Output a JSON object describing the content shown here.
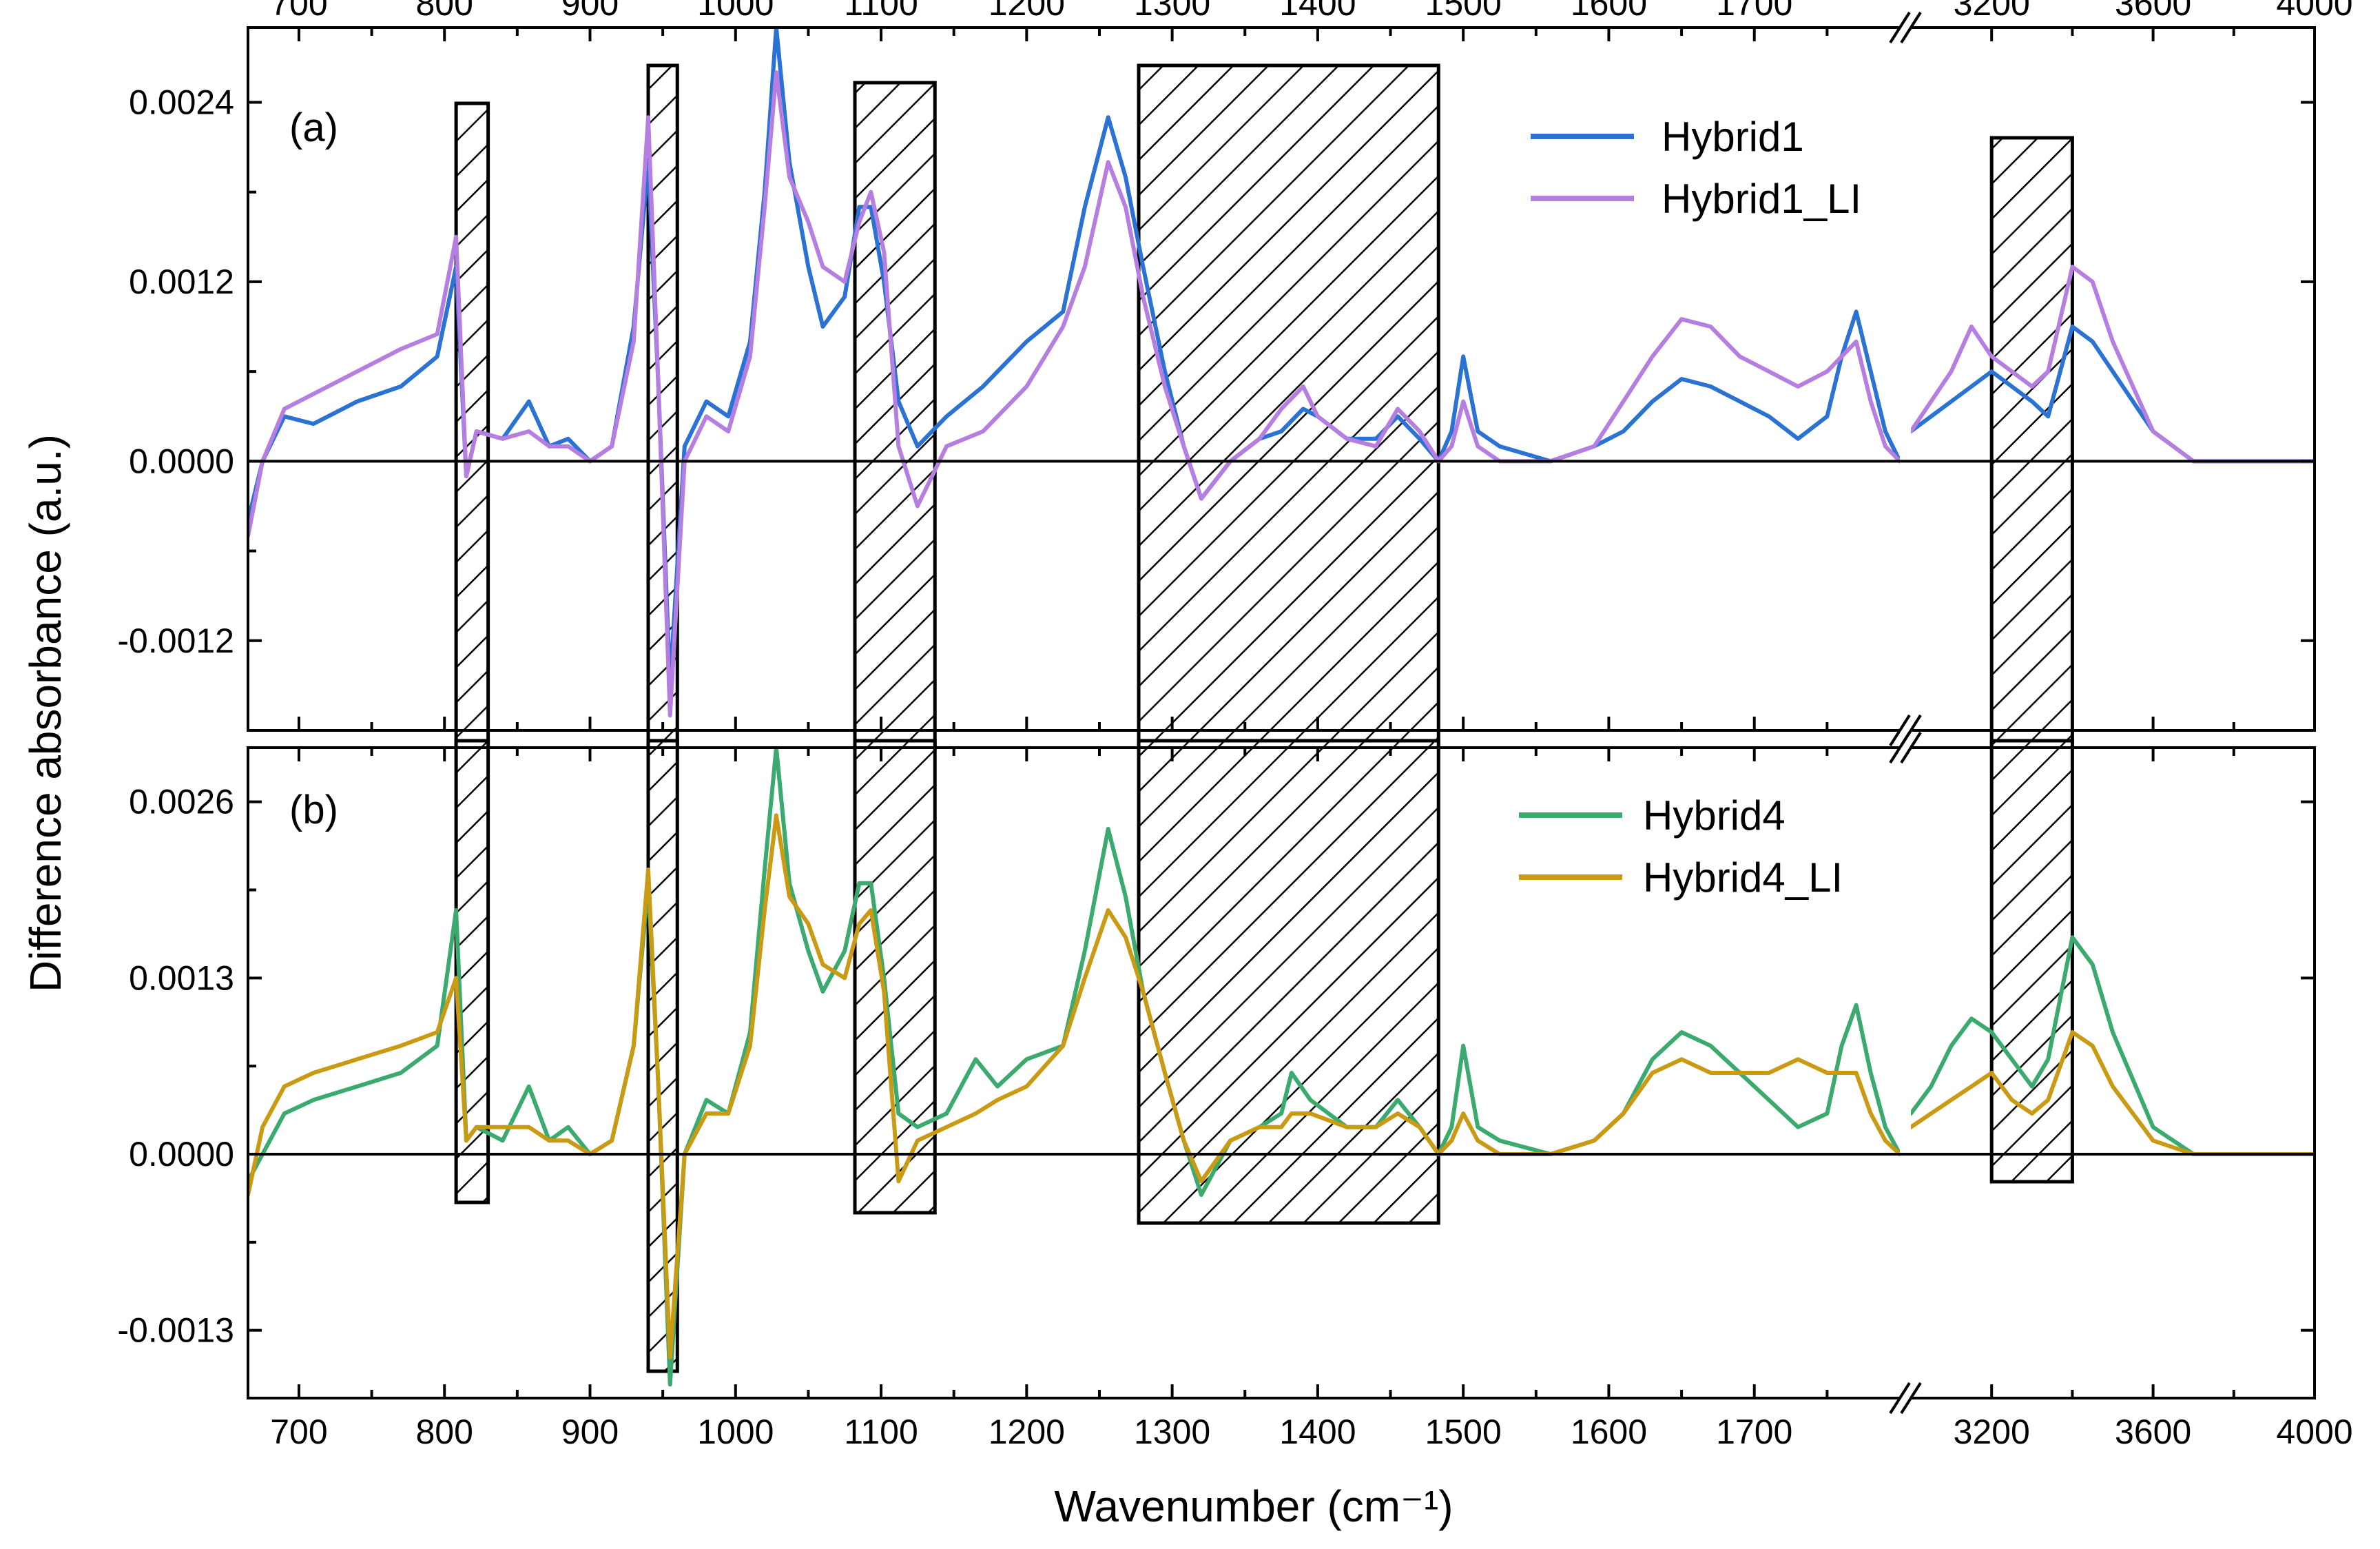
{
  "chart_data": [
    {
      "panel": "(a)",
      "type": "line",
      "ylabel": "Difference absorbance (a.u.)",
      "xlabel": "Wavenumber (cm⁻¹)",
      "xlim_segment1": [
        665,
        1800
      ],
      "xlim_segment2": [
        3000,
        4000
      ],
      "ylim": [
        -0.0018,
        0.0029
      ],
      "yticks": [
        -0.0012,
        0.0,
        0.0012,
        0.0024
      ],
      "ytick_labels": [
        "-0.0012",
        "0.0000",
        "0.0012",
        "0.0024"
      ],
      "xticks_segment1": [
        700,
        800,
        900,
        1000,
        1100,
        1200,
        1300,
        1400,
        1500,
        1600,
        1700
      ],
      "xticks_segment2": [
        3200,
        3600,
        4000
      ],
      "xtick_labels_segment1": [
        "700",
        "800",
        "900",
        "1000",
        "1100",
        "1200",
        "1300",
        "1400",
        "1500",
        "1600",
        "1700"
      ],
      "xtick_labels_segment2": [
        "3200",
        "3600",
        "4000"
      ],
      "legend_position": "top-right",
      "hatched_regions": [
        [
          808,
          830
        ],
        [
          940,
          960
        ],
        [
          1082,
          1137
        ],
        [
          1277,
          1483
        ],
        [
          3200,
          3400
        ]
      ],
      "series": [
        {
          "name": "Hybrid1",
          "color": "#2a72d4",
          "x": [
            665,
            675,
            690,
            710,
            740,
            770,
            795,
            808,
            815,
            822,
            840,
            858,
            872,
            885,
            900,
            915,
            930,
            940,
            947,
            955,
            965,
            980,
            995,
            1010,
            1020,
            1028,
            1037,
            1050,
            1060,
            1075,
            1085,
            1093,
            1102,
            1112,
            1125,
            1145,
            1170,
            1200,
            1225,
            1240,
            1256,
            1268,
            1280,
            1295,
            1308,
            1320,
            1340,
            1360,
            1375,
            1390,
            1400,
            1420,
            1440,
            1455,
            1470,
            1483,
            1492,
            1500,
            1510,
            1525,
            1560,
            1590,
            1610,
            1630,
            1650,
            1670,
            1690,
            1710,
            1730,
            1750,
            1760,
            1770,
            1780,
            1790,
            1800,
            3000,
            3050,
            3100,
            3150,
            3200,
            3250,
            3300,
            3340,
            3400,
            3450,
            3500,
            3600,
            3700,
            3800,
            3900,
            4000
          ],
          "y": [
            -0.0004,
            0.0,
            0.0003,
            0.00025,
            0.0004,
            0.0005,
            0.0007,
            0.0013,
            -0.0001,
            0.0002,
            0.00015,
            0.0004,
            0.0001,
            0.00015,
            0.0,
            0.0001,
            0.0009,
            0.002,
            0.0005,
            -0.0015,
            0.0001,
            0.0004,
            0.0003,
            0.0008,
            0.0018,
            0.0029,
            0.002,
            0.0013,
            0.0009,
            0.0011,
            0.0017,
            0.0017,
            0.0012,
            0.0004,
            0.0001,
            0.0003,
            0.0005,
            0.0008,
            0.001,
            0.0017,
            0.0023,
            0.0019,
            0.0013,
            0.0006,
            0.0001,
            -0.00025,
            0.0,
            0.00015,
            0.0002,
            0.00035,
            0.0003,
            0.00015,
            0.00015,
            0.0003,
            0.00015,
            0.0,
            0.0002,
            0.0007,
            0.0002,
            0.0001,
            0.0,
            0.0001,
            0.0002,
            0.0004,
            0.00055,
            0.0005,
            0.0004,
            0.0003,
            0.00015,
            0.0003,
            0.0007,
            0.001,
            0.0006,
            0.0002,
            0.0,
            0.0002,
            0.0003,
            0.0004,
            0.0005,
            0.0006,
            0.0005,
            0.0004,
            0.0003,
            0.0009,
            0.0008,
            0.0006,
            0.0002,
            0.0,
            0.0,
            0.0,
            0.0
          ]
        },
        {
          "name": "Hybrid1_LI",
          "color": "#b57ee0",
          "x": [
            665,
            675,
            690,
            710,
            740,
            770,
            795,
            808,
            815,
            822,
            840,
            858,
            872,
            885,
            900,
            915,
            930,
            940,
            947,
            955,
            965,
            980,
            995,
            1010,
            1020,
            1028,
            1037,
            1050,
            1060,
            1075,
            1085,
            1093,
            1102,
            1112,
            1125,
            1145,
            1170,
            1200,
            1225,
            1240,
            1256,
            1268,
            1280,
            1295,
            1308,
            1320,
            1340,
            1360,
            1375,
            1390,
            1400,
            1420,
            1440,
            1455,
            1470,
            1483,
            1492,
            1500,
            1510,
            1525,
            1560,
            1590,
            1610,
            1630,
            1650,
            1670,
            1690,
            1710,
            1730,
            1750,
            1760,
            1770,
            1780,
            1790,
            1800,
            3000,
            3050,
            3100,
            3150,
            3200,
            3250,
            3300,
            3340,
            3400,
            3450,
            3500,
            3600,
            3700,
            3800,
            3900,
            4000
          ],
          "y": [
            -0.0005,
            0.0,
            0.00035,
            0.00045,
            0.0006,
            0.00075,
            0.00085,
            0.0015,
            -0.0001,
            0.0002,
            0.00015,
            0.0002,
            0.0001,
            0.0001,
            0.0,
            0.0001,
            0.0008,
            0.0023,
            0.0005,
            -0.0017,
            0.0,
            0.0003,
            0.0002,
            0.0007,
            0.0017,
            0.0026,
            0.0019,
            0.0016,
            0.0013,
            0.0012,
            0.0016,
            0.0018,
            0.0014,
            0.0001,
            -0.0003,
            0.0001,
            0.0002,
            0.0005,
            0.0009,
            0.0013,
            0.002,
            0.0017,
            0.0011,
            0.0005,
            0.0001,
            -0.00025,
            0.0,
            0.00015,
            0.00035,
            0.0005,
            0.0003,
            0.00015,
            0.0001,
            0.00035,
            0.0002,
            0.0,
            0.0001,
            0.0004,
            0.0001,
            0.0,
            0.0,
            0.0001,
            0.0004,
            0.0007,
            0.00095,
            0.0009,
            0.0007,
            0.0006,
            0.0005,
            0.0006,
            0.0007,
            0.0008,
            0.0004,
            0.0001,
            0.0,
            0.0002,
            0.0004,
            0.0006,
            0.0009,
            0.0007,
            0.0006,
            0.0005,
            0.0006,
            0.0013,
            0.0012,
            0.0008,
            0.0002,
            0.0,
            0.0,
            0.0,
            0.0
          ]
        }
      ]
    },
    {
      "panel": "(b)",
      "type": "line",
      "ylabel": "Difference absorbance (a.u.)",
      "xlabel": "Wavenumber (cm⁻¹)",
      "xlim_segment1": [
        665,
        1800
      ],
      "xlim_segment2": [
        3000,
        4000
      ],
      "ylim": [
        -0.0018,
        0.003
      ],
      "yticks": [
        -0.0013,
        0.0,
        0.0013,
        0.0026
      ],
      "ytick_labels": [
        "-0.0013",
        "0.0000",
        "0.0013",
        "0.0026"
      ],
      "xticks_segment1": [
        700,
        800,
        900,
        1000,
        1100,
        1200,
        1300,
        1400,
        1500,
        1600,
        1700
      ],
      "xticks_segment2": [
        3200,
        3600,
        4000
      ],
      "xtick_labels_segment1": [
        "700",
        "800",
        "900",
        "1000",
        "1100",
        "1200",
        "1300",
        "1400",
        "1500",
        "1600",
        "1700"
      ],
      "xtick_labels_segment2": [
        "3200",
        "3600",
        "4000"
      ],
      "legend_position": "top-right",
      "hatched_regions": [
        [
          808,
          830
        ],
        [
          940,
          960
        ],
        [
          1082,
          1137
        ],
        [
          1277,
          1483
        ],
        [
          3200,
          3400
        ]
      ],
      "series": [
        {
          "name": "Hybrid4",
          "color": "#3aaa6e",
          "x": [
            665,
            675,
            690,
            710,
            740,
            770,
            795,
            808,
            815,
            822,
            840,
            858,
            872,
            885,
            900,
            915,
            930,
            940,
            947,
            955,
            965,
            980,
            995,
            1010,
            1020,
            1028,
            1037,
            1050,
            1060,
            1075,
            1085,
            1093,
            1102,
            1112,
            1125,
            1145,
            1165,
            1180,
            1200,
            1225,
            1240,
            1256,
            1268,
            1280,
            1295,
            1308,
            1320,
            1340,
            1360,
            1375,
            1382,
            1395,
            1420,
            1440,
            1455,
            1470,
            1483,
            1492,
            1500,
            1510,
            1525,
            1560,
            1590,
            1610,
            1630,
            1650,
            1670,
            1690,
            1710,
            1730,
            1750,
            1760,
            1770,
            1780,
            1790,
            1800,
            3000,
            3050,
            3100,
            3150,
            3200,
            3250,
            3300,
            3340,
            3400,
            3450,
            3500,
            3600,
            3700,
            3800,
            3900,
            4000
          ],
          "y": [
            -0.0002,
            0.0,
            0.0003,
            0.0004,
            0.0005,
            0.0006,
            0.0008,
            0.0018,
            0.0001,
            0.0002,
            0.0001,
            0.0005,
            0.0001,
            0.0002,
            0.0,
            0.0001,
            0.0008,
            0.002,
            0.0005,
            -0.0017,
            0.0,
            0.0004,
            0.0003,
            0.0009,
            0.0021,
            0.003,
            0.002,
            0.0015,
            0.0012,
            0.0015,
            0.002,
            0.002,
            0.0013,
            0.0003,
            0.0002,
            0.0003,
            0.0007,
            0.0005,
            0.0007,
            0.0008,
            0.0015,
            0.0024,
            0.0019,
            0.0012,
            0.0006,
            0.0001,
            -0.0003,
            0.0001,
            0.0002,
            0.0003,
            0.0006,
            0.0004,
            0.0002,
            0.0002,
            0.0004,
            0.0002,
            0.0,
            0.0002,
            0.0008,
            0.0002,
            0.0001,
            0.0,
            0.0001,
            0.0003,
            0.0007,
            0.0009,
            0.0008,
            0.0006,
            0.0004,
            0.0002,
            0.0003,
            0.0008,
            0.0011,
            0.0006,
            0.0002,
            0.0,
            0.0003,
            0.0005,
            0.0008,
            0.001,
            0.0009,
            0.0007,
            0.0005,
            0.0007,
            0.0016,
            0.0014,
            0.0009,
            0.0002,
            0.0,
            0.0,
            0.0,
            0.0
          ]
        },
        {
          "name": "Hybrid4_LI",
          "color": "#c99a12",
          "x": [
            665,
            675,
            690,
            710,
            740,
            770,
            795,
            808,
            815,
            822,
            840,
            858,
            872,
            885,
            900,
            915,
            930,
            940,
            947,
            955,
            965,
            980,
            995,
            1010,
            1020,
            1028,
            1037,
            1050,
            1060,
            1075,
            1085,
            1093,
            1102,
            1112,
            1125,
            1145,
            1165,
            1180,
            1200,
            1225,
            1240,
            1256,
            1268,
            1280,
            1295,
            1308,
            1320,
            1340,
            1360,
            1375,
            1382,
            1395,
            1420,
            1440,
            1455,
            1470,
            1483,
            1492,
            1500,
            1510,
            1525,
            1560,
            1590,
            1610,
            1630,
            1650,
            1670,
            1690,
            1710,
            1730,
            1750,
            1760,
            1770,
            1780,
            1790,
            1800,
            3000,
            3050,
            3100,
            3150,
            3200,
            3250,
            3300,
            3340,
            3400,
            3450,
            3500,
            3600,
            3700,
            3800,
            3900,
            4000
          ],
          "y": [
            -0.0003,
            0.0002,
            0.0005,
            0.0006,
            0.0007,
            0.0008,
            0.0009,
            0.0013,
            0.0001,
            0.0002,
            0.0002,
            0.0002,
            0.0001,
            0.0001,
            0.0,
            0.0001,
            0.0008,
            0.0021,
            0.0005,
            -0.0015,
            0.0,
            0.0003,
            0.0003,
            0.0008,
            0.0018,
            0.0025,
            0.0019,
            0.0017,
            0.0014,
            0.0013,
            0.0017,
            0.0018,
            0.0012,
            -0.0002,
            0.0001,
            0.0002,
            0.0003,
            0.0004,
            0.0005,
            0.0008,
            0.0013,
            0.0018,
            0.0016,
            0.0012,
            0.0006,
            0.0001,
            -0.0002,
            0.0001,
            0.0002,
            0.0002,
            0.0003,
            0.0003,
            0.0002,
            0.0002,
            0.0003,
            0.0002,
            0.0,
            0.0001,
            0.0003,
            0.0001,
            0.0,
            0.0,
            0.0001,
            0.0003,
            0.0006,
            0.0007,
            0.0006,
            0.0006,
            0.0006,
            0.0007,
            0.0006,
            0.0006,
            0.0006,
            0.0003,
            0.0001,
            0.0,
            0.0002,
            0.0003,
            0.0004,
            0.0005,
            0.0006,
            0.0004,
            0.0003,
            0.0004,
            0.0009,
            0.0008,
            0.0005,
            0.0001,
            0.0,
            0.0,
            0.0,
            0.0
          ]
        }
      ]
    }
  ],
  "axes": {
    "ylabel": "Difference absorbance (a.u.)",
    "xlabel": "Wavenumber (cm⁻¹)"
  }
}
